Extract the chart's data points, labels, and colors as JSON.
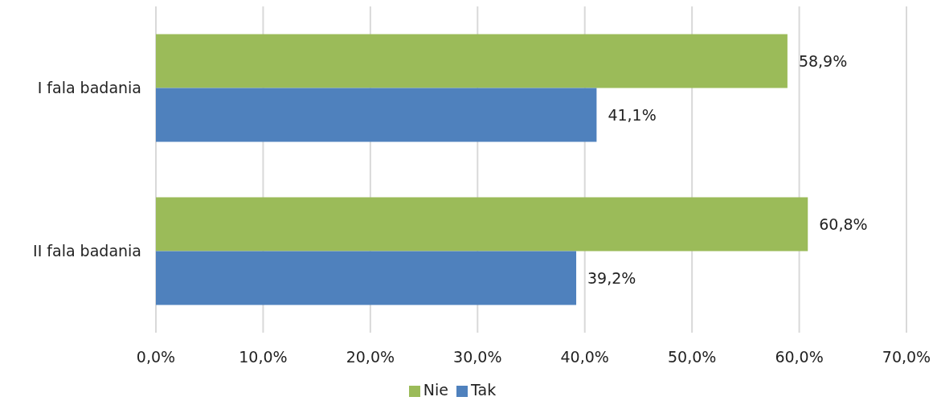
{
  "chart_data": {
    "type": "bar",
    "orientation": "horizontal",
    "categories": [
      "I fala badania",
      "II fala badania"
    ],
    "series": [
      {
        "name": "Nie",
        "color": "#9bbb59",
        "values": [
          58.9,
          60.8
        ],
        "value_labels": [
          "58,9%",
          "60,8%"
        ]
      },
      {
        "name": "Tak",
        "color": "#4f81bd",
        "values": [
          41.1,
          39.2
        ],
        "value_labels": [
          "41,1%",
          "39,2%"
        ]
      }
    ],
    "xlim": [
      0,
      70
    ],
    "xticks": [
      {
        "value": 0,
        "label": "0,0%"
      },
      {
        "value": 10,
        "label": "10,0%"
      },
      {
        "value": 20,
        "label": "20,0%"
      },
      {
        "value": 30,
        "label": "30,0%"
      },
      {
        "value": 40,
        "label": "40,0%"
      },
      {
        "value": 50,
        "label": "50,0%"
      },
      {
        "value": 60,
        "label": "60,0%"
      },
      {
        "value": 70,
        "label": "70,0%"
      }
    ],
    "grid": "x",
    "legend": "bottom"
  }
}
